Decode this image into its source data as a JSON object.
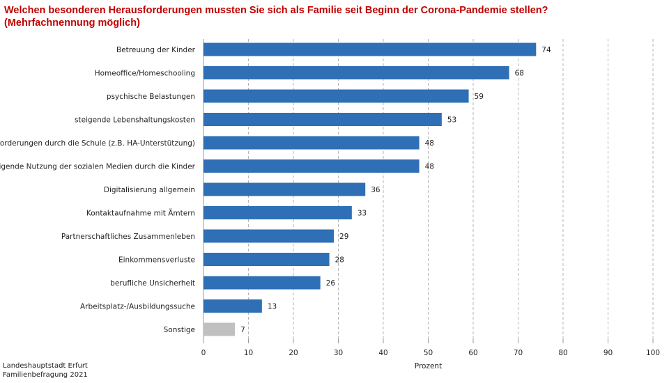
{
  "title": {
    "line1": "Welchen besonderen Herausforderungen mussten Sie sich als Familie seit Beginn der Corona-Pandemie stellen?",
    "line2": "(Mehrfachnennung möglich)"
  },
  "source": {
    "line1": "Landeshauptstadt Erfurt",
    "line2": "Familienbefragung 2021"
  },
  "colors": {
    "bar": "#2e6fb5",
    "other": "#c0c0c0",
    "title": "#c00000"
  },
  "chart_data": {
    "type": "bar",
    "orientation": "horizontal",
    "categories": [
      "Betreuung der Kinder",
      "Homeoffice/Homeschooling",
      "psychische Belastungen",
      "steigende Lebenshaltungskosten",
      "Anforderungen durch die Schule (z.B. HA-Unterstützung)",
      "steigende Nutzung der sozialen Medien durch die Kinder",
      "Digitalisierung allgemein",
      "Kontaktaufnahme mit Ämtern",
      "Partnerschaftliches Zusammenleben",
      "Einkommensverluste",
      "berufliche Unsicherheit",
      "Arbeitsplatz-/Ausbildungssuche",
      "Sonstige"
    ],
    "values": [
      74,
      68,
      59,
      53,
      48,
      48,
      36,
      33,
      29,
      28,
      26,
      13,
      7
    ],
    "highlight_gray": [
      "Sonstige"
    ],
    "xlabel": "Prozent",
    "xlim": [
      0,
      100
    ],
    "xticks": [
      0,
      10,
      20,
      30,
      40,
      50,
      60,
      70,
      80,
      90,
      100
    ],
    "grid": "vertical dashed",
    "data_labels": true
  }
}
